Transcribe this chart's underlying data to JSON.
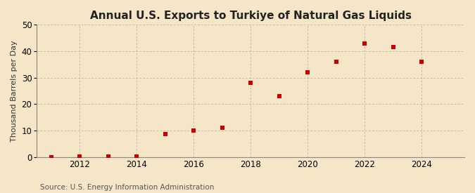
{
  "title": "Annual U.S. Exports to Turkiye of Natural Gas Liquids",
  "ylabel": "Thousand Barrels per Day",
  "source": "Source: U.S. Energy Information Administration",
  "background_color": "#f5e6c8",
  "plot_background_color": "#f5e6c8",
  "marker_color": "#cc0000",
  "marker": "s",
  "marker_size": 4,
  "xlim": [
    2010.5,
    2025.5
  ],
  "ylim": [
    0,
    50
  ],
  "yticks": [
    0,
    10,
    20,
    30,
    40,
    50
  ],
  "xticks": [
    2012,
    2014,
    2016,
    2018,
    2020,
    2022,
    2024
  ],
  "years": [
    2011,
    2012,
    2013,
    2014,
    2015,
    2016,
    2017,
    2018,
    2019,
    2020,
    2021,
    2022,
    2023,
    2024
  ],
  "values": [
    0.0,
    0.1,
    0.1,
    0.1,
    8.7,
    10.0,
    11.0,
    28.0,
    23.0,
    32.0,
    36.0,
    43.0,
    41.5,
    36.0
  ],
  "title_fontsize": 11,
  "ylabel_fontsize": 8,
  "tick_fontsize": 8.5,
  "source_fontsize": 7.5
}
